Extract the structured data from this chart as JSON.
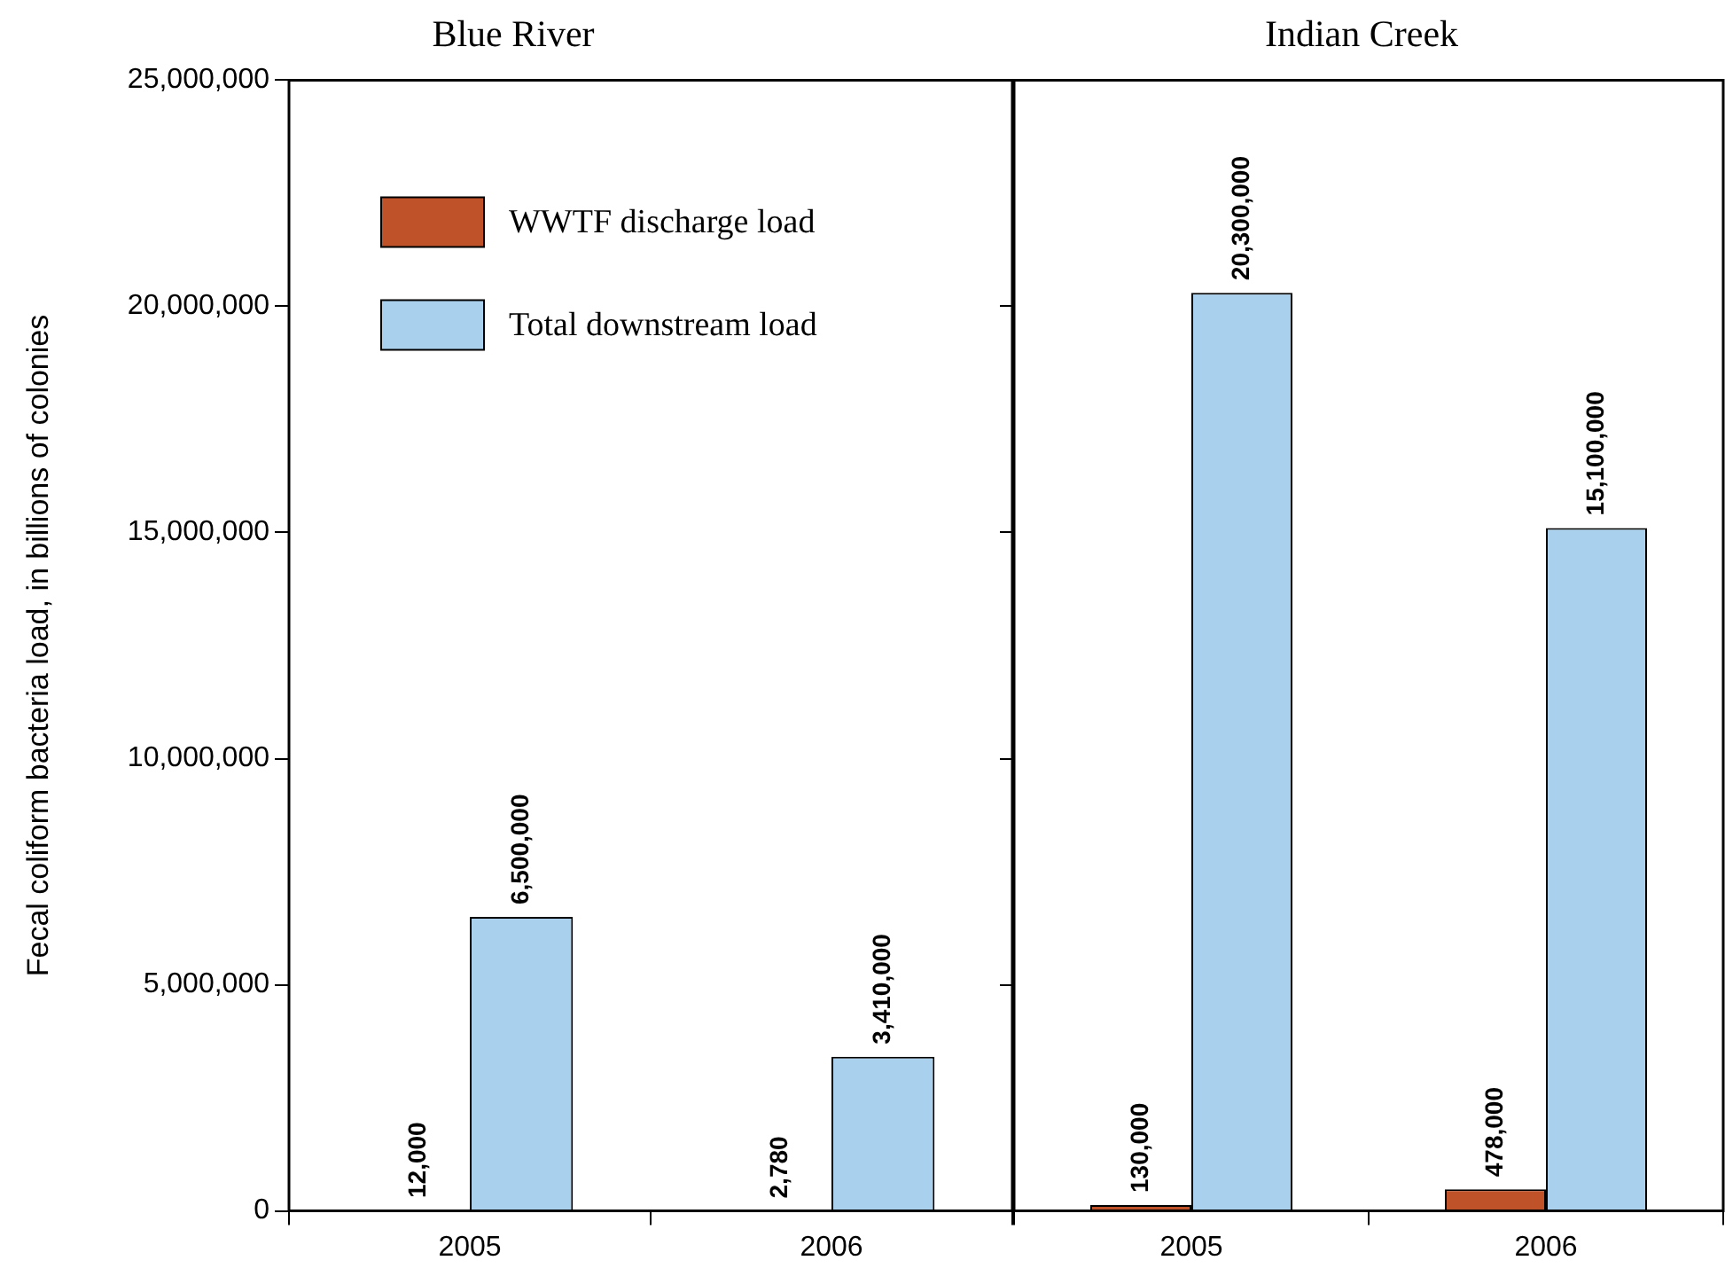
{
  "chart_data": [
    {
      "type": "bar",
      "title": "Blue River",
      "ylabel": "Fecal coliform bacteria load, in billions of colonies",
      "categories": [
        "2005",
        "2006"
      ],
      "series": [
        {
          "name": "WWTF discharge load",
          "color": "#c0522a",
          "values": [
            12000,
            2780
          ],
          "value_labels": [
            "12,000",
            "2,780"
          ]
        },
        {
          "name": "Total downstream load",
          "color": "#a9d1ee",
          "values": [
            6500000,
            3410000
          ],
          "value_labels": [
            "6,500,000",
            "3,410,000"
          ]
        }
      ],
      "ylim": [
        0,
        25000000
      ],
      "yticks": [
        0,
        {
          "value": 5000000,
          "label": "5,000,000"
        },
        {
          "value": 10000000,
          "label": "10,000,000"
        },
        {
          "value": 15000000,
          "label": "15,000,000"
        },
        {
          "value": 20000000,
          "label": "20,000,000"
        },
        {
          "value": 25000000,
          "label": "25,000,000"
        }
      ],
      "legend": "top left"
    },
    {
      "type": "bar",
      "title": "Indian Creek",
      "categories": [
        "2005",
        "2006"
      ],
      "series": [
        {
          "color": "#c0522a",
          "values": [
            130000,
            478000
          ],
          "value_labels": [
            "130,000",
            "478,000"
          ]
        },
        {
          "color": "#a9d1ee",
          "values": [
            20300000,
            15100000
          ],
          "value_labels": [
            "20,300,000",
            "15,100,000"
          ]
        }
      ],
      "ylim": [
        0,
        25000000
      ],
      "yticks": [
        {
          "value": 0,
          "label": null
        },
        {
          "value": 5000000,
          "label": null
        },
        {
          "value": 10000000,
          "label": null
        },
        {
          "value": 15000000,
          "label": null
        },
        {
          "value": 20000000,
          "label": null
        },
        {
          "value": 25000000,
          "label": null
        }
      ],
      "tick_labels": "x"
    }
  ]
}
